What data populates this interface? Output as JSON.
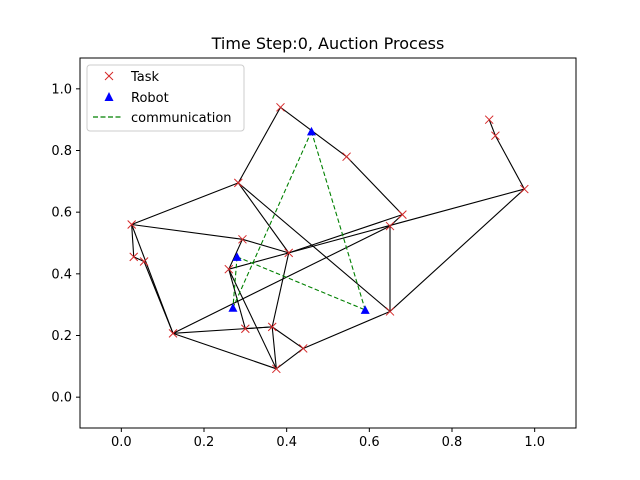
{
  "chart_data": {
    "type": "scatter",
    "title": "Time Step:0, Auction Process",
    "xlim": [
      -0.1,
      1.1
    ],
    "ylim": [
      -0.1,
      1.1
    ],
    "xticks": [
      0.0,
      0.2,
      0.4,
      0.6,
      0.8,
      1.0
    ],
    "yticks": [
      0.0,
      0.2,
      0.4,
      0.6,
      0.8,
      1.0
    ],
    "xtick_labels": [
      "0.0",
      "0.2",
      "0.4",
      "0.6",
      "0.8",
      "1.0"
    ],
    "ytick_labels": [
      "0.0",
      "0.2",
      "0.4",
      "0.6",
      "0.8",
      "1.0"
    ],
    "grid": false,
    "legend_position": "upper-left",
    "legend": [
      {
        "label": "Task",
        "marker": "x",
        "color": "#d62728"
      },
      {
        "label": "Robot",
        "marker": "triangle",
        "color": "#0000ff"
      },
      {
        "label": "communication",
        "marker": "dashed-line",
        "color": "#008000"
      }
    ],
    "colors": {
      "task": "#d62728",
      "robot": "#0000ff",
      "communication": "#008000",
      "edge": "#000000"
    },
    "tasks": [
      [
        0.385,
        0.94
      ],
      [
        0.545,
        0.78
      ],
      [
        0.283,
        0.695
      ],
      [
        0.68,
        0.592
      ],
      [
        0.65,
        0.555
      ],
      [
        0.025,
        0.56
      ],
      [
        0.293,
        0.512
      ],
      [
        0.405,
        0.468
      ],
      [
        0.03,
        0.455
      ],
      [
        0.055,
        0.44
      ],
      [
        0.26,
        0.415
      ],
      [
        0.65,
        0.278
      ],
      [
        0.125,
        0.207
      ],
      [
        0.3,
        0.222
      ],
      [
        0.365,
        0.228
      ],
      [
        0.44,
        0.158
      ],
      [
        0.375,
        0.092
      ],
      [
        0.89,
        0.9
      ],
      [
        0.905,
        0.848
      ],
      [
        0.975,
        0.675
      ]
    ],
    "robots": [
      [
        0.46,
        0.862
      ],
      [
        0.28,
        0.455
      ],
      [
        0.27,
        0.29
      ],
      [
        0.59,
        0.283
      ]
    ],
    "edges": [
      [
        [
          0.385,
          0.94
        ],
        [
          0.545,
          0.78
        ]
      ],
      [
        [
          0.545,
          0.78
        ],
        [
          0.68,
          0.592
        ]
      ],
      [
        [
          0.385,
          0.94
        ],
        [
          0.283,
          0.695
        ]
      ],
      [
        [
          0.283,
          0.695
        ],
        [
          0.025,
          0.56
        ]
      ],
      [
        [
          0.025,
          0.56
        ],
        [
          0.03,
          0.455
        ]
      ],
      [
        [
          0.03,
          0.455
        ],
        [
          0.055,
          0.44
        ]
      ],
      [
        [
          0.055,
          0.44
        ],
        [
          0.125,
          0.207
        ]
      ],
      [
        [
          0.025,
          0.56
        ],
        [
          0.125,
          0.207
        ]
      ],
      [
        [
          0.125,
          0.207
        ],
        [
          0.375,
          0.092
        ]
      ],
      [
        [
          0.375,
          0.092
        ],
        [
          0.44,
          0.158
        ]
      ],
      [
        [
          0.44,
          0.158
        ],
        [
          0.65,
          0.278
        ]
      ],
      [
        [
          0.65,
          0.278
        ],
        [
          0.65,
          0.555
        ]
      ],
      [
        [
          0.65,
          0.555
        ],
        [
          0.68,
          0.592
        ]
      ],
      [
        [
          0.68,
          0.592
        ],
        [
          0.405,
          0.468
        ]
      ],
      [
        [
          0.283,
          0.695
        ],
        [
          0.405,
          0.468
        ]
      ],
      [
        [
          0.283,
          0.695
        ],
        [
          0.65,
          0.278
        ]
      ],
      [
        [
          0.025,
          0.56
        ],
        [
          0.293,
          0.512
        ]
      ],
      [
        [
          0.293,
          0.512
        ],
        [
          0.405,
          0.468
        ]
      ],
      [
        [
          0.293,
          0.512
        ],
        [
          0.26,
          0.415
        ]
      ],
      [
        [
          0.26,
          0.415
        ],
        [
          0.405,
          0.468
        ]
      ],
      [
        [
          0.405,
          0.468
        ],
        [
          0.365,
          0.228
        ]
      ],
      [
        [
          0.365,
          0.228
        ],
        [
          0.375,
          0.092
        ]
      ],
      [
        [
          0.26,
          0.415
        ],
        [
          0.3,
          0.222
        ]
      ],
      [
        [
          0.3,
          0.222
        ],
        [
          0.365,
          0.228
        ]
      ],
      [
        [
          0.365,
          0.228
        ],
        [
          0.44,
          0.158
        ]
      ],
      [
        [
          0.125,
          0.207
        ],
        [
          0.365,
          0.228
        ]
      ],
      [
        [
          0.26,
          0.415
        ],
        [
          0.375,
          0.092
        ]
      ],
      [
        [
          0.125,
          0.207
        ],
        [
          0.65,
          0.555
        ]
      ],
      [
        [
          0.65,
          0.278
        ],
        [
          0.975,
          0.675
        ]
      ],
      [
        [
          0.405,
          0.468
        ],
        [
          0.975,
          0.675
        ]
      ],
      [
        [
          0.975,
          0.675
        ],
        [
          0.905,
          0.848
        ]
      ],
      [
        [
          0.905,
          0.848
        ],
        [
          0.89,
          0.9
        ]
      ]
    ],
    "communication_links": [
      [
        [
          0.46,
          0.862
        ],
        [
          0.27,
          0.29
        ]
      ],
      [
        [
          0.46,
          0.862
        ],
        [
          0.59,
          0.283
        ]
      ],
      [
        [
          0.28,
          0.455
        ],
        [
          0.59,
          0.283
        ]
      ],
      [
        [
          0.28,
          0.455
        ],
        [
          0.27,
          0.29
        ]
      ]
    ]
  }
}
